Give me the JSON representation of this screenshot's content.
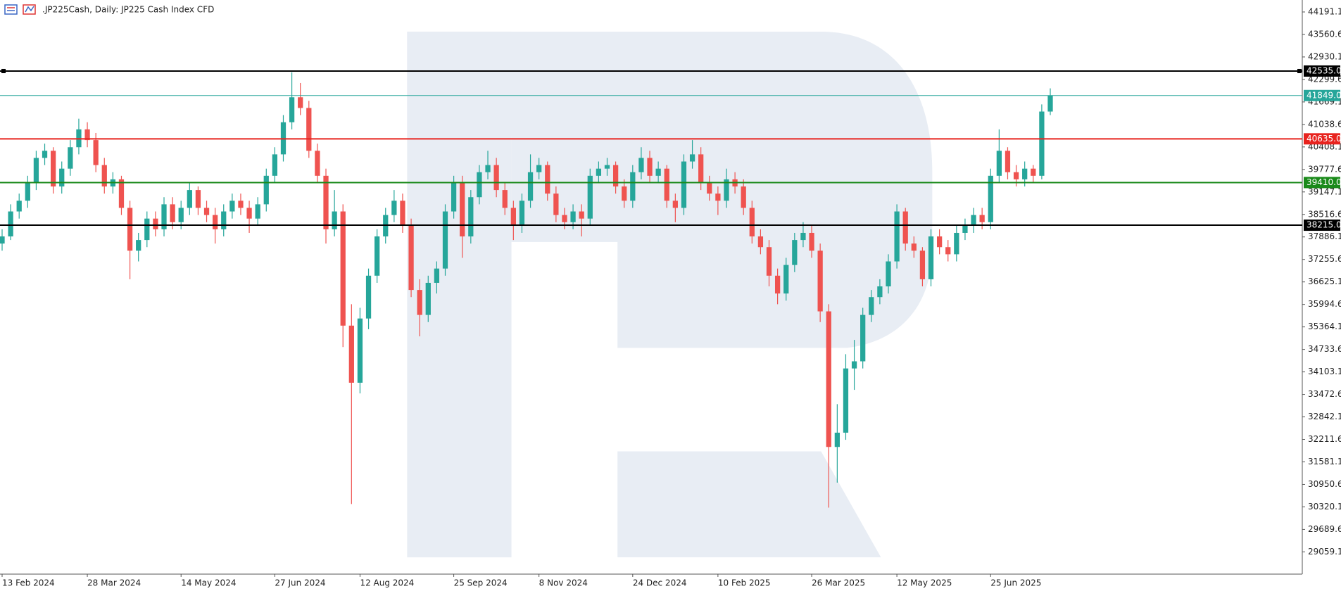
{
  "chart_data": {
    "type": "candlestick",
    "title": ".JP225Cash, Daily:  JP225 Cash Index CFD",
    "up_color": "#26a69a",
    "down_color": "#ef5350",
    "ylim": [
      28436,
      44526
    ],
    "yticks": [
      44191.1,
      43560.6,
      42930.1,
      42299.6,
      41669.1,
      41038.6,
      40408.1,
      39777.6,
      39147.1,
      38516.6,
      37886.1,
      37255.6,
      36625.1,
      35994.6,
      35364.1,
      34733.6,
      34103.1,
      33472.6,
      32842.1,
      32211.6,
      31581.1,
      30950.6,
      30320.1,
      29689.6,
      29059.1
    ],
    "xticks": [
      {
        "value": 0,
        "label": "13 Feb 2024"
      },
      {
        "value": 10,
        "label": "28 Mar 2024"
      },
      {
        "value": 21,
        "label": "14 May 2024"
      },
      {
        "value": 32,
        "label": "27 Jun 2024"
      },
      {
        "value": 42,
        "label": "12 Aug 2024"
      },
      {
        "value": 53,
        "label": "25 Sep 2024"
      },
      {
        "value": 63,
        "label": "8 Nov 2024"
      },
      {
        "value": 74,
        "label": "24 Dec 2024"
      },
      {
        "value": 84,
        "label": "10 Feb 2025"
      },
      {
        "value": 95,
        "label": "26 Mar 2025"
      },
      {
        "value": 105,
        "label": "12 May 2025"
      },
      {
        "value": 116,
        "label": "25 Jun 2025"
      }
    ],
    "levels": [
      {
        "value": 42535,
        "label": "42535.0",
        "color": "#000000",
        "width": 2
      },
      {
        "value": 41849,
        "label": "41849.0",
        "color": "#26a69a",
        "width": 1
      },
      {
        "value": 40635,
        "label": "40635.0",
        "color": "#e8231e",
        "width": 2
      },
      {
        "value": 39410,
        "label": "39410.0",
        "color": "#1a8a1a",
        "width": 2
      },
      {
        "value": 38215,
        "label": "38215.0",
        "color": "#000000",
        "width": 2
      }
    ],
    "candles": [
      [
        37700,
        38100,
        37500,
        37900
      ],
      [
        37900,
        38800,
        37800,
        38600
      ],
      [
        38600,
        39100,
        38400,
        38900
      ],
      [
        38900,
        39600,
        38700,
        39400
      ],
      [
        39400,
        40300,
        39200,
        40100
      ],
      [
        40100,
        40500,
        39900,
        40300
      ],
      [
        40300,
        40400,
        39100,
        39300
      ],
      [
        39300,
        40000,
        39100,
        39800
      ],
      [
        39800,
        40600,
        39600,
        40400
      ],
      [
        40400,
        41200,
        40200,
        40900
      ],
      [
        40900,
        41100,
        40400,
        40600
      ],
      [
        40600,
        40800,
        39700,
        39900
      ],
      [
        39900,
        40100,
        39100,
        39300
      ],
      [
        39300,
        39700,
        39100,
        39500
      ],
      [
        39500,
        39600,
        38500,
        38700
      ],
      [
        38700,
        38900,
        36700,
        37500
      ],
      [
        37500,
        38000,
        37200,
        37800
      ],
      [
        37800,
        38600,
        37600,
        38400
      ],
      [
        38400,
        38600,
        37900,
        38100
      ],
      [
        38100,
        39000,
        37900,
        38800
      ],
      [
        38800,
        39000,
        38100,
        38300
      ],
      [
        38300,
        38900,
        38100,
        38700
      ],
      [
        38700,
        39400,
        38500,
        39200
      ],
      [
        39200,
        39300,
        38500,
        38700
      ],
      [
        38700,
        38900,
        38300,
        38500
      ],
      [
        38500,
        38700,
        37700,
        38100
      ],
      [
        38100,
        38800,
        37900,
        38600
      ],
      [
        38600,
        39100,
        38400,
        38900
      ],
      [
        38900,
        39100,
        38500,
        38700
      ],
      [
        38700,
        38900,
        38000,
        38400
      ],
      [
        38400,
        39000,
        38200,
        38800
      ],
      [
        38800,
        39800,
        38600,
        39600
      ],
      [
        39600,
        40400,
        39400,
        40200
      ],
      [
        40200,
        41300,
        40000,
        41100
      ],
      [
        41100,
        42500,
        40900,
        41800
      ],
      [
        41800,
        42200,
        41300,
        41500
      ],
      [
        41500,
        41700,
        40100,
        40300
      ],
      [
        40300,
        40500,
        39400,
        39600
      ],
      [
        39600,
        39800,
        37700,
        38100
      ],
      [
        38100,
        39200,
        37900,
        38600
      ],
      [
        38600,
        38800,
        34800,
        35400
      ],
      [
        35400,
        36000,
        30400,
        33800
      ],
      [
        33800,
        35900,
        33500,
        35600
      ],
      [
        35600,
        37000,
        35300,
        36800
      ],
      [
        36800,
        38100,
        36600,
        37900
      ],
      [
        37900,
        38700,
        37700,
        38500
      ],
      [
        38500,
        39200,
        38300,
        38900
      ],
      [
        38900,
        39100,
        38000,
        38200
      ],
      [
        38200,
        38400,
        36200,
        36400
      ],
      [
        36400,
        36700,
        35100,
        35700
      ],
      [
        35700,
        36800,
        35500,
        36600
      ],
      [
        36600,
        37200,
        36300,
        37000
      ],
      [
        37000,
        38800,
        36800,
        38600
      ],
      [
        38600,
        39600,
        38400,
        39400
      ],
      [
        39400,
        39600,
        37300,
        37900
      ],
      [
        37900,
        39200,
        37700,
        39000
      ],
      [
        39000,
        39900,
        38800,
        39700
      ],
      [
        39700,
        40300,
        39500,
        39900
      ],
      [
        39900,
        40100,
        39000,
        39200
      ],
      [
        39200,
        39400,
        38500,
        38700
      ],
      [
        38700,
        38900,
        37800,
        38200
      ],
      [
        38200,
        39100,
        38000,
        38900
      ],
      [
        38900,
        40200,
        38700,
        39700
      ],
      [
        39700,
        40100,
        39500,
        39900
      ],
      [
        39900,
        40000,
        38900,
        39100
      ],
      [
        39100,
        39300,
        38300,
        38500
      ],
      [
        38500,
        38700,
        38100,
        38300
      ],
      [
        38300,
        38800,
        38100,
        38600
      ],
      [
        38600,
        38800,
        37900,
        38400
      ],
      [
        38400,
        39800,
        38200,
        39600
      ],
      [
        39600,
        40000,
        39400,
        39800
      ],
      [
        39800,
        40100,
        39600,
        39900
      ],
      [
        39900,
        40000,
        39100,
        39300
      ],
      [
        39300,
        39500,
        38700,
        38900
      ],
      [
        38900,
        39900,
        38700,
        39700
      ],
      [
        39700,
        40400,
        39500,
        40100
      ],
      [
        40100,
        40300,
        39400,
        39600
      ],
      [
        39600,
        40000,
        39400,
        39800
      ],
      [
        39800,
        39900,
        38700,
        38900
      ],
      [
        38900,
        39100,
        38300,
        38700
      ],
      [
        38700,
        40200,
        38500,
        40000
      ],
      [
        40000,
        40600,
        39800,
        40200
      ],
      [
        40200,
        40400,
        39200,
        39400
      ],
      [
        39400,
        39600,
        38900,
        39100
      ],
      [
        39100,
        39300,
        38500,
        38900
      ],
      [
        38900,
        39800,
        38700,
        39500
      ],
      [
        39500,
        39700,
        39100,
        39300
      ],
      [
        39300,
        39500,
        38500,
        38700
      ],
      [
        38700,
        38900,
        37700,
        37900
      ],
      [
        37900,
        38100,
        37400,
        37600
      ],
      [
        37600,
        37800,
        36500,
        36800
      ],
      [
        36800,
        37000,
        36000,
        36300
      ],
      [
        36300,
        37300,
        36100,
        37100
      ],
      [
        37100,
        38000,
        36900,
        37800
      ],
      [
        37800,
        38300,
        37600,
        38000
      ],
      [
        38000,
        38200,
        37300,
        37500
      ],
      [
        37500,
        37700,
        35500,
        35800
      ],
      [
        35800,
        36000,
        30300,
        32000
      ],
      [
        32000,
        33200,
        31000,
        32400
      ],
      [
        32400,
        34600,
        32200,
        34200
      ],
      [
        34200,
        35000,
        33600,
        34400
      ],
      [
        34400,
        35900,
        34200,
        35700
      ],
      [
        35700,
        36400,
        35500,
        36200
      ],
      [
        36200,
        36700,
        36000,
        36500
      ],
      [
        36500,
        37400,
        36300,
        37200
      ],
      [
        37200,
        38800,
        37000,
        38600
      ],
      [
        38600,
        38700,
        37500,
        37700
      ],
      [
        37700,
        37900,
        37300,
        37500
      ],
      [
        37500,
        37600,
        36500,
        36700
      ],
      [
        36700,
        38100,
        36500,
        37900
      ],
      [
        37900,
        38100,
        37400,
        37600
      ],
      [
        37600,
        37800,
        37200,
        37400
      ],
      [
        37400,
        38200,
        37200,
        38000
      ],
      [
        38000,
        38400,
        37800,
        38200
      ],
      [
        38200,
        38700,
        38000,
        38500
      ],
      [
        38500,
        38700,
        38100,
        38300
      ],
      [
        38300,
        39800,
        38100,
        39600
      ],
      [
        39600,
        40900,
        39400,
        40300
      ],
      [
        40300,
        40400,
        39500,
        39700
      ],
      [
        39700,
        39900,
        39300,
        39500
      ],
      [
        39500,
        40000,
        39300,
        39800
      ],
      [
        39800,
        39900,
        39400,
        39600
      ],
      [
        39600,
        41600,
        39500,
        41400
      ],
      [
        41400,
        42050,
        41300,
        41849
      ]
    ]
  }
}
